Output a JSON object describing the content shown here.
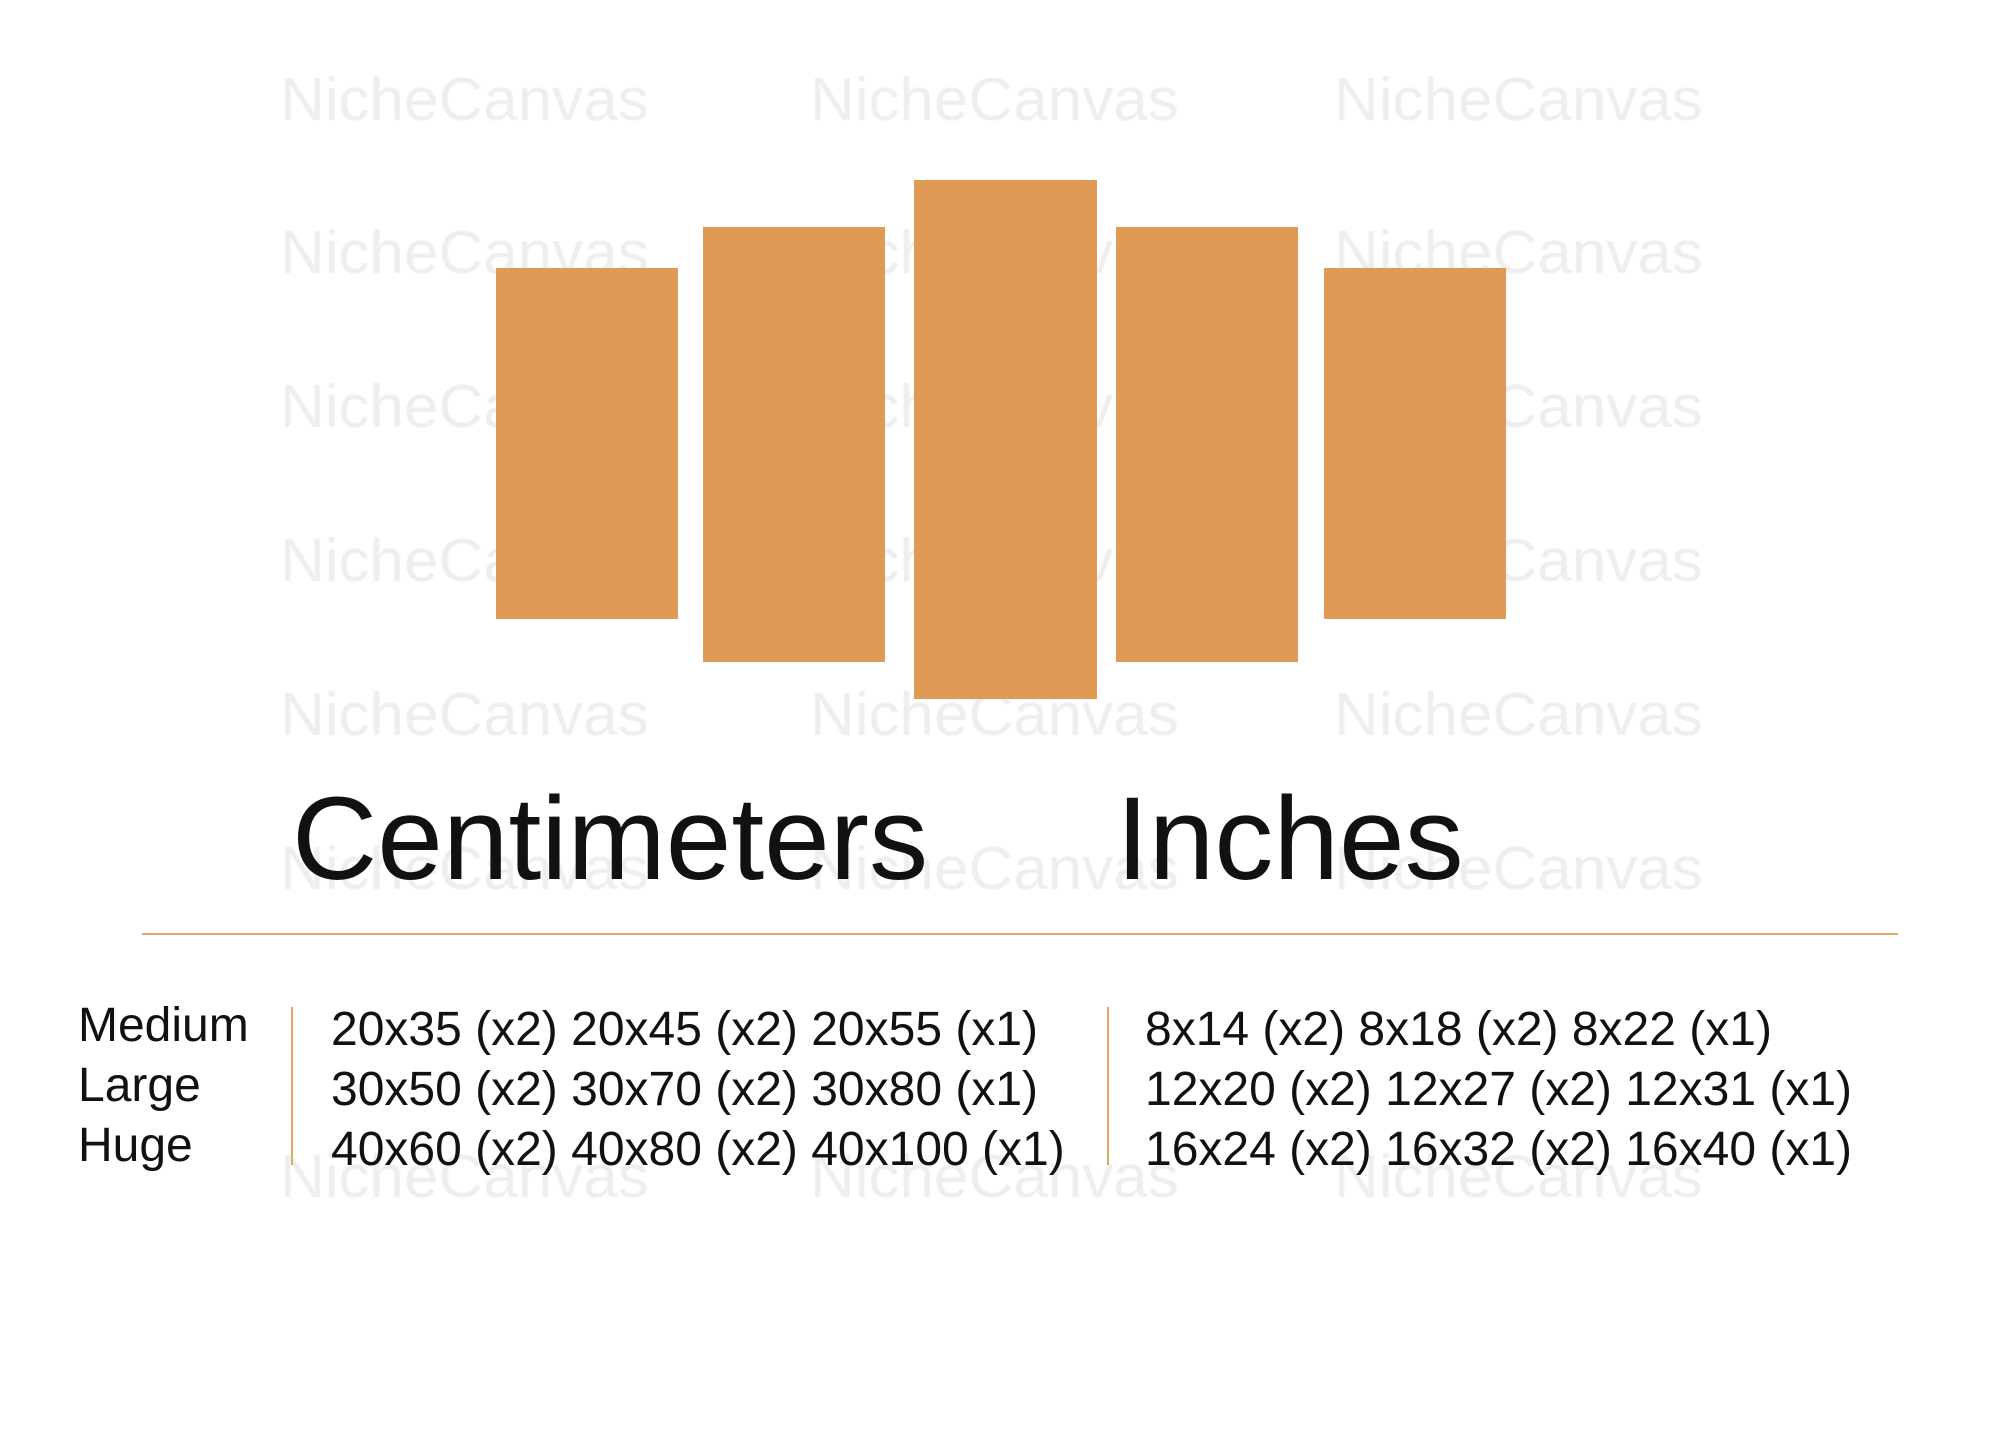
{
  "watermark": "NicheCanvas",
  "colors": {
    "panel": "#e09a55",
    "accent_line": "#e0a868",
    "watermark": "#eeeeee",
    "text": "#111111"
  },
  "panels_count": 5,
  "headings": {
    "cm": "Centimeters",
    "in": "Inches"
  },
  "sizes": [
    {
      "label": "Medium",
      "cm": "20x35 (x2) 20x45 (x2) 20x55 (x1)",
      "in": "8x14 (x2) 8x18 (x2) 8x22 (x1)"
    },
    {
      "label": "Large",
      "cm": "30x50 (x2) 30x70 (x2) 30x80 (x1)",
      "in": "12x20 (x2) 12x27 (x2) 12x31 (x1)"
    },
    {
      "label": "Huge",
      "cm": "40x60 (x2) 40x80 (x2) 40x100 (x1)",
      "in": "16x24 (x2) 16x32 (x2) 16x40 (x1)"
    }
  ]
}
